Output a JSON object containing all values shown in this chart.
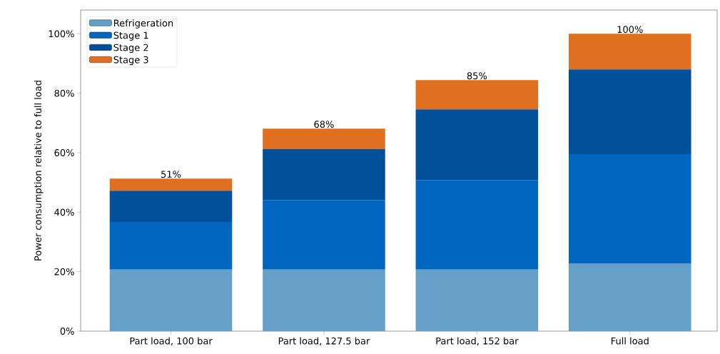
{
  "chart_data": {
    "type": "bar",
    "stacked": true,
    "ylabel": "Power consumption relative to full load",
    "categories": [
      "Part load, 100 bar",
      "Part load, 127.5 bar",
      "Part load, 152 bar",
      "Full load"
    ],
    "series": [
      {
        "name": "Refrigeration",
        "color": "#64a0c8",
        "values": [
          20.7,
          20.7,
          20.7,
          22.8
        ]
      },
      {
        "name": "Stage 1",
        "color": "#0066c0",
        "values": [
          16.0,
          23.4,
          30.1,
          36.7
        ]
      },
      {
        "name": "Stage 2",
        "color": "#00509a",
        "values": [
          10.5,
          17.1,
          23.8,
          28.5
        ]
      },
      {
        "name": "Stage 3",
        "color": "#e07020",
        "values": [
          4.1,
          6.9,
          9.8,
          12.0
        ]
      }
    ],
    "totals": [
      "51%",
      "68%",
      "85%",
      "100%"
    ],
    "ylim": [
      0,
      108
    ],
    "yticks": [
      {
        "value": 0,
        "label": "0%"
      },
      {
        "value": 20,
        "label": "20%"
      },
      {
        "value": 40,
        "label": "40%"
      },
      {
        "value": 60,
        "label": "60%"
      },
      {
        "value": 80,
        "label": "80%"
      },
      {
        "value": 100,
        "label": "100%"
      }
    ],
    "legend": "top left",
    "grid": false
  }
}
